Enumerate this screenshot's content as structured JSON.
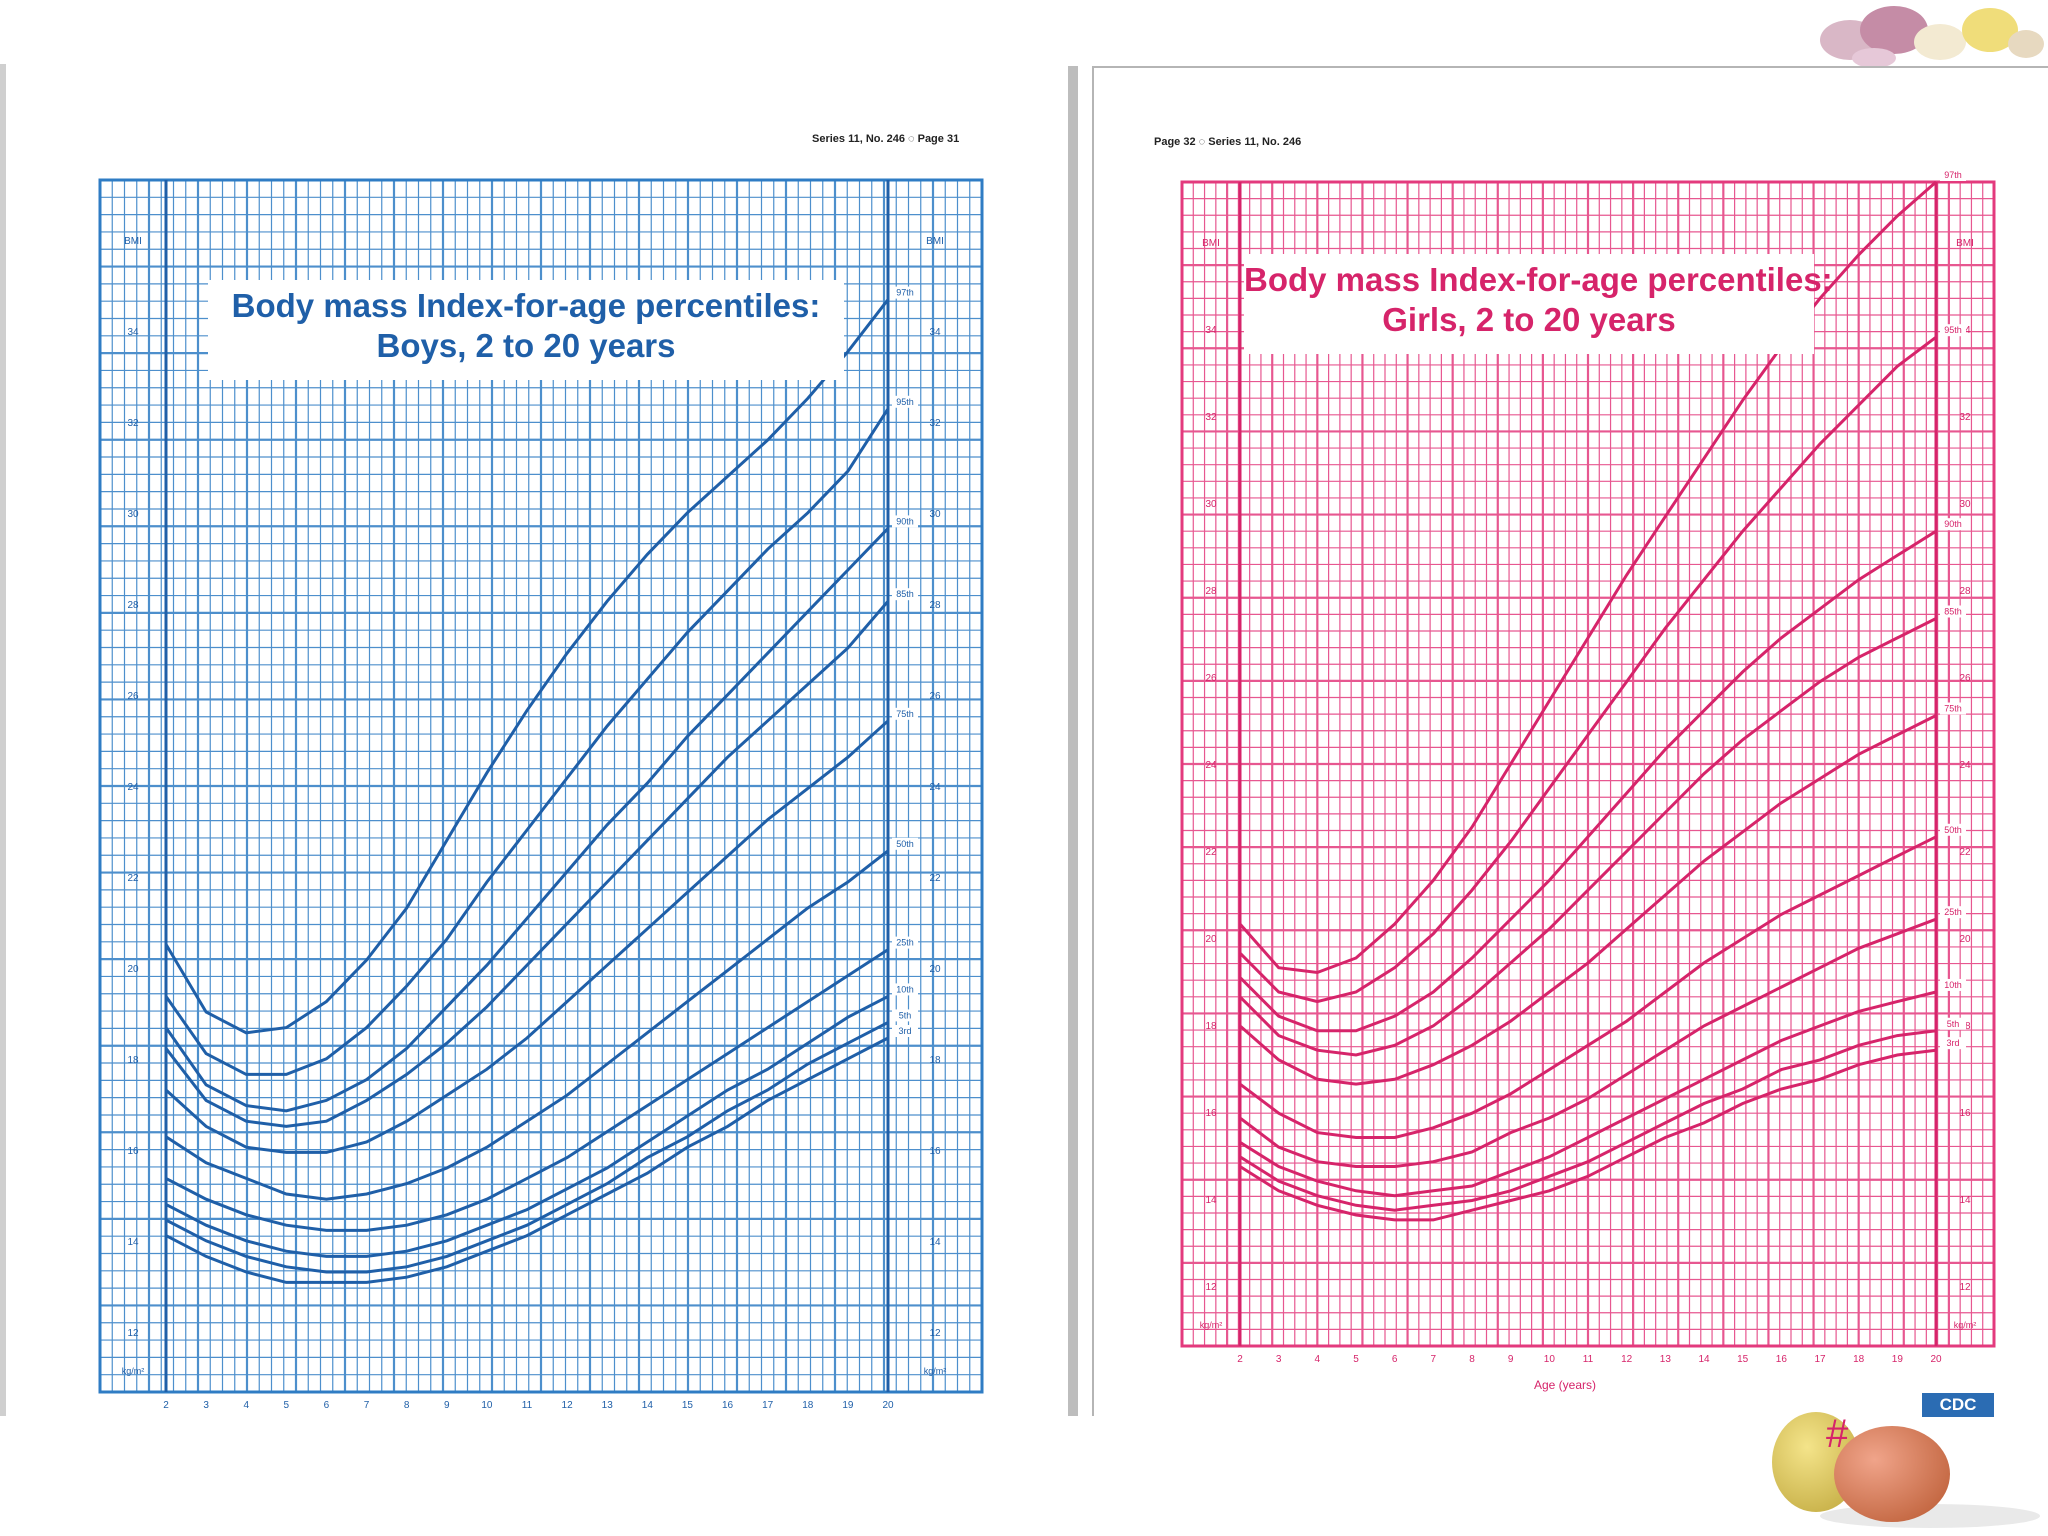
{
  "colors": {
    "boys": "#2f7cc4",
    "boys_dark": "#1f5fa8",
    "girls": "#e33a7d",
    "girls_dark": "#d6246a"
  },
  "decor": {
    "top_right": "candy-eggs-photo",
    "bottom_right": "candy-eggs-photo"
  },
  "slide_number": "#",
  "boys_page": {
    "header": "Series 11, No. 246 ◌ Page 31",
    "title_line1": "Body mass Index-for-age percentiles:",
    "title_line2": "Boys, 2 to 20 years"
  },
  "girls_page": {
    "header": "Page 32 ◌ Series 11, No. 246",
    "title_line1": "Body mass Index-for-age percentiles:",
    "title_line2": "Girls, 2 to 20 years",
    "xlabel": "Age (years)",
    "logo": "CDC"
  },
  "chart_data": [
    {
      "type": "line",
      "title": "Body mass Index-for-age percentiles: Boys, 2 to 20 years",
      "xlabel": "",
      "ylabel": "kg/m²",
      "x": [
        2,
        3,
        4,
        5,
        6,
        7,
        8,
        9,
        10,
        11,
        12,
        13,
        14,
        15,
        16,
        17,
        18,
        19,
        20
      ],
      "xlim": [
        2,
        20
      ],
      "ylim": [
        12,
        35
      ],
      "y_ticks_left": [
        "12",
        "14",
        "16",
        "18",
        "20",
        "22",
        "24",
        "26",
        "28",
        "30",
        "32",
        "34",
        "BMI"
      ],
      "y_unit": "kg/m²",
      "grid": true,
      "series": [
        {
          "name": "97th",
          "values": [
            20.3,
            19.0,
            18.6,
            18.7,
            19.2,
            20.0,
            21.0,
            22.3,
            23.6,
            24.8,
            25.9,
            26.9,
            27.8,
            28.6,
            29.3,
            30.0,
            30.8,
            31.7,
            32.7
          ]
        },
        {
          "name": "95th",
          "values": [
            19.3,
            18.2,
            17.8,
            17.8,
            18.1,
            18.7,
            19.5,
            20.4,
            21.5,
            22.5,
            23.5,
            24.5,
            25.4,
            26.3,
            27.1,
            27.9,
            28.6,
            29.4,
            30.6
          ]
        },
        {
          "name": "90th",
          "values": [
            18.7,
            17.6,
            17.2,
            17.1,
            17.3,
            17.7,
            18.3,
            19.1,
            19.9,
            20.8,
            21.7,
            22.6,
            23.4,
            24.3,
            25.1,
            25.9,
            26.7,
            27.5,
            28.3
          ]
        },
        {
          "name": "85th",
          "values": [
            18.3,
            17.3,
            16.9,
            16.8,
            16.9,
            17.3,
            17.8,
            18.4,
            19.1,
            19.9,
            20.7,
            21.5,
            22.3,
            23.1,
            23.9,
            24.6,
            25.3,
            26.0,
            26.9
          ]
        },
        {
          "name": "75th",
          "values": [
            17.5,
            16.8,
            16.4,
            16.3,
            16.3,
            16.5,
            16.9,
            17.4,
            17.9,
            18.5,
            19.2,
            19.9,
            20.6,
            21.3,
            22.0,
            22.7,
            23.3,
            23.9,
            24.6
          ]
        },
        {
          "name": "50th",
          "values": [
            16.6,
            16.1,
            15.8,
            15.5,
            15.4,
            15.5,
            15.7,
            16.0,
            16.4,
            16.9,
            17.4,
            18.0,
            18.6,
            19.2,
            19.8,
            20.4,
            21.0,
            21.5,
            22.1
          ]
        },
        {
          "name": "25th",
          "values": [
            15.8,
            15.4,
            15.1,
            14.9,
            14.8,
            14.8,
            14.9,
            15.1,
            15.4,
            15.8,
            16.2,
            16.7,
            17.2,
            17.7,
            18.2,
            18.7,
            19.2,
            19.7,
            20.2
          ]
        },
        {
          "name": "10th",
          "values": [
            15.3,
            14.9,
            14.6,
            14.4,
            14.3,
            14.3,
            14.4,
            14.6,
            14.9,
            15.2,
            15.6,
            16.0,
            16.5,
            17.0,
            17.5,
            17.9,
            18.4,
            18.9,
            19.3
          ]
        },
        {
          "name": "5th",
          "values": [
            15.0,
            14.6,
            14.3,
            14.1,
            14.0,
            14.0,
            14.1,
            14.3,
            14.6,
            14.9,
            15.3,
            15.7,
            16.2,
            16.6,
            17.1,
            17.5,
            18.0,
            18.4,
            18.8
          ]
        },
        {
          "name": "3rd",
          "values": [
            14.7,
            14.3,
            14.0,
            13.8,
            13.8,
            13.8,
            13.9,
            14.1,
            14.4,
            14.7,
            15.1,
            15.5,
            15.9,
            16.4,
            16.8,
            17.3,
            17.7,
            18.1,
            18.5
          ]
        }
      ]
    },
    {
      "type": "line",
      "title": "Body mass Index-for-age percentiles: Girls, 2 to 20 years",
      "xlabel": "Age (years)",
      "ylabel": "kg/m²",
      "x": [
        2,
        3,
        4,
        5,
        6,
        7,
        8,
        9,
        10,
        11,
        12,
        13,
        14,
        15,
        16,
        17,
        18,
        19,
        20
      ],
      "xlim": [
        2,
        20
      ],
      "ylim": [
        11,
        35
      ],
      "y_ticks_left": [
        "12",
        "14",
        "16",
        "18",
        "20",
        "22",
        "24",
        "26",
        "28",
        "30",
        "32",
        "34",
        "BMI"
      ],
      "y_unit": "kg/m²",
      "grid": true,
      "series": [
        {
          "name": "97th",
          "values": [
            19.7,
            18.8,
            18.7,
            19.0,
            19.7,
            20.6,
            21.7,
            23.0,
            24.3,
            25.6,
            26.9,
            28.1,
            29.3,
            30.5,
            31.6,
            32.6,
            33.5,
            34.3,
            35.0
          ]
        },
        {
          "name": "95th",
          "values": [
            19.1,
            18.3,
            18.1,
            18.3,
            18.8,
            19.5,
            20.4,
            21.4,
            22.5,
            23.6,
            24.7,
            25.8,
            26.8,
            27.8,
            28.7,
            29.6,
            30.4,
            31.2,
            31.8
          ]
        },
        {
          "name": "90th",
          "values": [
            18.6,
            17.8,
            17.5,
            17.5,
            17.8,
            18.3,
            19.0,
            19.8,
            20.6,
            21.5,
            22.4,
            23.3,
            24.1,
            24.9,
            25.6,
            26.2,
            26.8,
            27.3,
            27.8
          ]
        },
        {
          "name": "85th",
          "values": [
            18.2,
            17.4,
            17.1,
            17.0,
            17.2,
            17.6,
            18.2,
            18.9,
            19.6,
            20.4,
            21.2,
            22.0,
            22.8,
            23.5,
            24.1,
            24.7,
            25.2,
            25.6,
            26.0
          ]
        },
        {
          "name": "75th",
          "values": [
            17.6,
            16.9,
            16.5,
            16.4,
            16.5,
            16.8,
            17.2,
            17.7,
            18.3,
            18.9,
            19.6,
            20.3,
            21.0,
            21.6,
            22.2,
            22.7,
            23.2,
            23.6,
            24.0
          ]
        },
        {
          "name": "50th",
          "values": [
            16.4,
            15.8,
            15.4,
            15.3,
            15.3,
            15.5,
            15.8,
            16.2,
            16.7,
            17.2,
            17.7,
            18.3,
            18.9,
            19.4,
            19.9,
            20.3,
            20.7,
            21.1,
            21.5
          ]
        },
        {
          "name": "25th",
          "values": [
            15.7,
            15.1,
            14.8,
            14.7,
            14.7,
            14.8,
            15.0,
            15.4,
            15.7,
            16.1,
            16.6,
            17.1,
            17.6,
            18.0,
            18.4,
            18.8,
            19.2,
            19.5,
            19.8
          ]
        },
        {
          "name": "10th",
          "values": [
            15.2,
            14.7,
            14.4,
            14.2,
            14.1,
            14.2,
            14.3,
            14.6,
            14.9,
            15.3,
            15.7,
            16.1,
            16.5,
            16.9,
            17.3,
            17.6,
            17.9,
            18.1,
            18.3
          ]
        },
        {
          "name": "5th",
          "values": [
            14.9,
            14.4,
            14.1,
            13.9,
            13.8,
            13.9,
            14.0,
            14.2,
            14.5,
            14.8,
            15.2,
            15.6,
            16.0,
            16.3,
            16.7,
            16.9,
            17.2,
            17.4,
            17.5
          ]
        },
        {
          "name": "3rd",
          "values": [
            14.7,
            14.2,
            13.9,
            13.7,
            13.6,
            13.6,
            13.8,
            14.0,
            14.2,
            14.5,
            14.9,
            15.3,
            15.6,
            16.0,
            16.3,
            16.5,
            16.8,
            17.0,
            17.1
          ]
        }
      ]
    }
  ]
}
